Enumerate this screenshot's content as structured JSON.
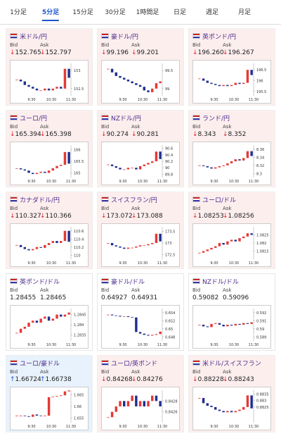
{
  "tabs": {
    "items": [
      "1分足",
      "5分足",
      "15分足",
      "30分足",
      "1時間足",
      "日足",
      "週足",
      "月足"
    ],
    "active": 1
  },
  "labels": {
    "bid": "Bid",
    "ask": "Ask"
  },
  "chart_xticks": [
    "9:30",
    "10:30",
    "11:30"
  ],
  "cards": [
    {
      "name": "米ドル/円",
      "theme": "pink",
      "bid_arrow": "↓",
      "bid": "152.765",
      "ask_arrow": "↓",
      "ask": "152.797",
      "chart": {
        "ylim": [
          152.3,
          153.2
        ],
        "yticks": [
          153,
          152.5
        ],
        "values": [
          152.75,
          152.7,
          152.6,
          152.55,
          152.5,
          152.45,
          152.45,
          152.5,
          152.45,
          152.5,
          152.55,
          152.5,
          153.05,
          152.8
        ]
      }
    },
    {
      "name": "豪ドル/円",
      "theme": "pink",
      "bid_arrow": "↓",
      "bid": "99.196",
      "ask_arrow": "↓",
      "ask": "99.201",
      "chart": {
        "ylim": [
          98.8,
          99.7
        ],
        "yticks": [
          99.5,
          99
        ],
        "values": [
          99.55,
          99.45,
          99.35,
          99.3,
          99.25,
          99.2,
          99.15,
          99.1,
          99.05,
          98.95,
          98.9,
          99.0,
          99.15,
          99.2
        ]
      }
    },
    {
      "name": "英ポンド/円",
      "theme": "pink",
      "bid_arrow": "↓",
      "bid": "196.260",
      "ask_arrow": "↓",
      "ask": "196.267",
      "chart": {
        "ylim": [
          195.3,
          196.8
        ],
        "yticks": [
          196.5,
          196,
          195.5
        ],
        "values": [
          196.1,
          196.0,
          195.9,
          195.85,
          195.8,
          195.75,
          195.8,
          195.75,
          195.8,
          195.9,
          195.85,
          195.9,
          196.5,
          196.26
        ]
      }
    },
    {
      "name": "ユーロ/円",
      "theme": "pink",
      "bid_arrow": "↓",
      "bid": "165.394",
      "ask_arrow": "↓",
      "ask": "165.398",
      "chart": {
        "ylim": [
          164.8,
          166.2
        ],
        "yticks": [
          166,
          165.5,
          165
        ],
        "values": [
          165.2,
          165.15,
          165.1,
          165.0,
          164.95,
          165.0,
          165.05,
          165.0,
          165.1,
          165.2,
          165.3,
          165.35,
          165.9,
          165.4
        ]
      }
    },
    {
      "name": "NZドル/円",
      "theme": "pink",
      "bid_arrow": "↓",
      "bid": "90.274",
      "ask_arrow": "↓",
      "ask": "90.281",
      "chart": {
        "ylim": [
          89.7,
          90.7
        ],
        "yticks": [
          90.6,
          90.4,
          90.2,
          90,
          89.8
        ],
        "values": [
          90.1,
          90.05,
          90.0,
          89.95,
          89.95,
          90.0,
          90.0,
          89.95,
          90.05,
          90.1,
          90.15,
          90.2,
          90.5,
          90.27
        ]
      }
    },
    {
      "name": "ランド/円",
      "theme": "pink",
      "bid_arrow": "↓",
      "bid": "8.343",
      "ask_arrow": "↓",
      "ask": "8.352",
      "chart": {
        "ylim": [
          8.29,
          8.37
        ],
        "yticks": [
          8.36,
          8.34,
          8.32,
          8.3
        ],
        "values": [
          8.32,
          8.318,
          8.315,
          8.312,
          8.315,
          8.318,
          8.32,
          8.325,
          8.33,
          8.335,
          8.332,
          8.338,
          8.355,
          8.343
        ]
      }
    },
    {
      "name": "カナダドル/円",
      "theme": "pink",
      "bid_arrow": "↓",
      "bid": "110.327",
      "ask_arrow": "↓",
      "ask": "110.366",
      "chart": {
        "ylim": [
          109.9,
          110.7
        ],
        "yticks": [
          110.6,
          110.4,
          110.2,
          110
        ],
        "values": [
          110.25,
          110.2,
          110.15,
          110.12,
          110.15,
          110.2,
          110.18,
          110.25,
          110.3,
          110.35,
          110.3,
          110.35,
          110.6,
          110.33
        ]
      }
    },
    {
      "name": "スイスフラン/円",
      "theme": "pink",
      "bid_arrow": "↓",
      "bid": "173.072",
      "ask_arrow": "↓",
      "ask": "173.088",
      "chart": {
        "ylim": [
          172.3,
          173.7
        ],
        "yticks": [
          173.5,
          173,
          172.5
        ],
        "values": [
          173.0,
          172.9,
          172.85,
          172.8,
          172.75,
          172.8,
          172.8,
          172.85,
          172.9,
          172.9,
          172.95,
          173.0,
          173.4,
          173.07
        ]
      }
    },
    {
      "name": "ユーロ/ドル",
      "theme": "pink",
      "bid_arrow": "↓",
      "bid": "1.08253",
      "ask_arrow": "↓",
      "ask": "1.08256",
      "chart": {
        "ylim": [
          1.081,
          1.083
        ],
        "yticks": [
          1.0825,
          1.082,
          1.0815
        ],
        "values": [
          1.0814,
          1.0815,
          1.0816,
          1.0817,
          1.0818,
          1.082,
          1.0819,
          1.0821,
          1.0822,
          1.0821,
          1.0823,
          1.0824,
          1.0826,
          1.0825
        ]
      }
    },
    {
      "name": "英ポンド/ドル",
      "theme": "white",
      "bid": "1.28455",
      "ask": "1.28465",
      "chart": {
        "ylim": [
          1.2832,
          1.2848
        ],
        "yticks": [
          1.2845,
          1.284,
          1.2835
        ],
        "values": [
          1.2836,
          1.2838,
          1.2839,
          1.2841,
          1.2842,
          1.2841,
          1.2843,
          1.2844,
          1.2842,
          1.2843,
          1.2845,
          1.2844,
          1.2845,
          1.2846
        ]
      }
    },
    {
      "name": "豪ドル/ドル",
      "theme": "white",
      "bid": "0.64927",
      "ask": "0.64931",
      "chart": {
        "ylim": [
          0.647,
          0.655
        ],
        "yticks": [
          0.654,
          0.652,
          0.65,
          0.648
        ],
        "values": [
          0.6535,
          0.6533,
          0.6532,
          0.653,
          0.6531,
          0.6529,
          0.6528,
          0.6492,
          0.6488,
          0.6485,
          0.6483,
          0.6485,
          0.6487,
          0.6493
        ]
      }
    },
    {
      "name": "NZドル/ドル",
      "theme": "white",
      "bid": "0.59082",
      "ask": "0.59096",
      "chart": {
        "ylim": [
          0.5885,
          0.5925
        ],
        "yticks": [
          0.592,
          0.591,
          0.59,
          0.589
        ],
        "values": [
          0.5905,
          0.5903,
          0.5902,
          0.5906,
          0.5907,
          0.5905,
          0.5903,
          0.5905,
          0.5904,
          0.5906,
          0.5905,
          0.5907,
          0.5906,
          0.5908
        ]
      }
    },
    {
      "name": "ユーロ/豪ドル",
      "theme": "blue",
      "bid_arrow": "↑",
      "bid": "1.66724",
      "ask_arrow": "↑",
      "ask": "1.66738",
      "chart": {
        "ylim": [
          1.653,
          1.667
        ],
        "yticks": [
          1.665,
          1.66,
          1.655
        ],
        "values": [
          1.656,
          1.656,
          1.6558,
          1.6555,
          1.6565,
          1.656,
          1.6558,
          1.656,
          1.664,
          1.6642,
          1.6645,
          1.6648,
          1.6665,
          1.6669
        ]
      }
    },
    {
      "name": "ユーロ/英ポンド",
      "theme": "pink",
      "bid_arrow": "↓",
      "bid": "0.84268",
      "ask_arrow": "↓",
      "ask": "0.84276",
      "chart": {
        "ylim": [
          0.8424,
          0.843
        ],
        "yticks": [
          0.8428,
          0.8426
        ],
        "values": [
          0.8425,
          0.8426,
          0.8427,
          0.8428,
          0.8427,
          0.8428,
          0.8429,
          0.8427,
          0.8428,
          0.8427,
          0.8428,
          0.8429,
          0.8428,
          0.8427
        ]
      }
    },
    {
      "name": "米ドル/スイスフラン",
      "theme": "pink",
      "bid_arrow": "↓",
      "bid": "0.88228",
      "ask_arrow": "↓",
      "ask": "0.88243",
      "chart": {
        "ylim": [
          0.8813,
          0.8838
        ],
        "yticks": [
          0.8835,
          0.883,
          0.8825
        ],
        "values": [
          0.8832,
          0.8828,
          0.8826,
          0.8825,
          0.8823,
          0.8822,
          0.8821,
          0.8822,
          0.8821,
          0.8822,
          0.8823,
          0.8825,
          0.8834,
          0.8824
        ]
      }
    }
  ]
}
